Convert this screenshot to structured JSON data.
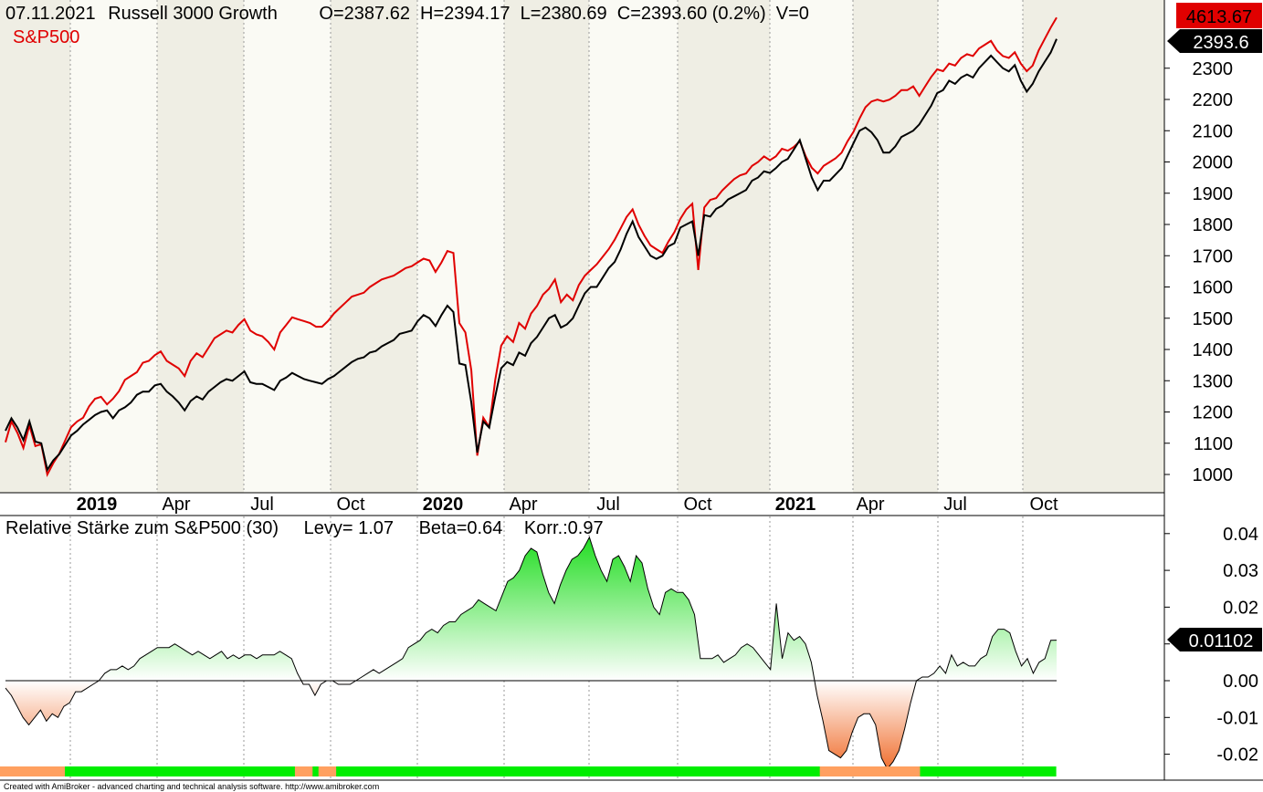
{
  "header": {
    "date": "07.11.2021",
    "symbol": "Russell 3000 Growth",
    "ohlc": "O=2387.62  H=2394.17  L=2380.69  C=2393.60 (0.2%)  V=0",
    "overlay_label": "S&P500"
  },
  "indicator_header": {
    "title": "Relative Stärke zum S&P500 (30)",
    "levy": "Levy= 1.07",
    "beta": "Beta=0.64",
    "korr": "Korr.:0.97"
  },
  "badges": {
    "sp500_last": "4613.67",
    "r3g_last": "2393.6",
    "rs_last": "0.01102"
  },
  "credit": "Created with AmiBroker - advanced charting and technical analysis software. http://www.amibroker.com",
  "colors": {
    "r3g_line": "#000000",
    "sp500_line": "#e00000",
    "rs_positive_fill": "#22dd22",
    "rs_negative_fill": "#f07030",
    "band_green": "#00ee00",
    "band_orange": "#ffa060",
    "background_light": "#fafaf4",
    "background_dark": "#efeee4"
  },
  "chart_data": [
    {
      "type": "line",
      "title": "07.11.2021 Russell 3000 Growth",
      "xlabel": "",
      "ylabel": "",
      "x_ticks": [
        "2019",
        "Apr",
        "Jul",
        "Oct",
        "2020",
        "Apr",
        "Jul",
        "Oct",
        "2021",
        "Apr",
        "Jul",
        "Oct"
      ],
      "y_ticks": [
        1000,
        1100,
        1200,
        1300,
        1400,
        1500,
        1600,
        1700,
        1800,
        1900,
        2000,
        2100,
        2200,
        2300
      ],
      "ylim": [
        1000,
        2300
      ],
      "grid": true,
      "series": [
        {
          "name": "Russell 3000 Growth",
          "values": [
            1140,
            1180,
            1150,
            1110,
            1170,
            1105,
            1100,
            1015,
            1045,
            1065,
            1095,
            1125,
            1140,
            1160,
            1175,
            1190,
            1200,
            1205,
            1180,
            1205,
            1215,
            1230,
            1255,
            1265,
            1265,
            1285,
            1290,
            1265,
            1250,
            1230,
            1205,
            1235,
            1250,
            1240,
            1265,
            1280,
            1295,
            1305,
            1300,
            1315,
            1330,
            1295,
            1290,
            1290,
            1280,
            1270,
            1300,
            1310,
            1325,
            1315,
            1305,
            1300,
            1295,
            1290,
            1305,
            1315,
            1330,
            1345,
            1360,
            1370,
            1375,
            1390,
            1395,
            1410,
            1420,
            1430,
            1450,
            1455,
            1460,
            1490,
            1510,
            1500,
            1475,
            1510,
            1540,
            1520,
            1355,
            1350,
            1230,
            1070,
            1170,
            1150,
            1250,
            1340,
            1360,
            1350,
            1390,
            1380,
            1420,
            1440,
            1470,
            1500,
            1510,
            1470,
            1480,
            1500,
            1540,
            1580,
            1600,
            1600,
            1630,
            1660,
            1680,
            1720,
            1770,
            1810,
            1760,
            1730,
            1700,
            1690,
            1700,
            1730,
            1740,
            1790,
            1800,
            1810,
            1700,
            1830,
            1825,
            1850,
            1860,
            1880,
            1890,
            1900,
            1910,
            1940,
            1950,
            1970,
            1965,
            1980,
            2000,
            2010,
            2040,
            2070,
            2010,
            1950,
            1910,
            1940,
            1940,
            1960,
            1980,
            2020,
            2060,
            2100,
            2110,
            2095,
            2070,
            2030,
            2030,
            2050,
            2080,
            2090,
            2100,
            2120,
            2150,
            2180,
            2220,
            2230,
            2260,
            2250,
            2270,
            2280,
            2270,
            2300,
            2320,
            2340,
            2320,
            2300,
            2290,
            2310,
            2260,
            2225,
            2250,
            2290,
            2320,
            2350,
            2393.6
          ]
        },
        {
          "name": "S&P500",
          "values": [
            2370,
            2480,
            2420,
            2340,
            2460,
            2350,
            2360,
            2200,
            2260,
            2310,
            2380,
            2450,
            2480,
            2500,
            2560,
            2600,
            2610,
            2570,
            2600,
            2640,
            2700,
            2720,
            2740,
            2790,
            2800,
            2830,
            2850,
            2800,
            2780,
            2760,
            2720,
            2800,
            2840,
            2820,
            2870,
            2920,
            2940,
            2960,
            2950,
            2990,
            3020,
            2960,
            2940,
            2930,
            2900,
            2860,
            2950,
            2990,
            3030,
            3020,
            3010,
            3000,
            2980,
            2980,
            3010,
            3050,
            3080,
            3110,
            3140,
            3150,
            3160,
            3190,
            3210,
            3230,
            3240,
            3250,
            3270,
            3290,
            3300,
            3320,
            3340,
            3330,
            3270,
            3320,
            3380,
            3370,
            3000,
            2950,
            2750,
            2300,
            2500,
            2450,
            2700,
            2880,
            2930,
            2900,
            3000,
            2970,
            3050,
            3090,
            3150,
            3180,
            3230,
            3110,
            3150,
            3120,
            3200,
            3250,
            3280,
            3310,
            3350,
            3390,
            3440,
            3500,
            3560,
            3600,
            3520,
            3460,
            3410,
            3390,
            3370,
            3430,
            3480,
            3550,
            3600,
            3630,
            3280,
            3610,
            3650,
            3660,
            3700,
            3730,
            3760,
            3780,
            3790,
            3830,
            3850,
            3880,
            3860,
            3880,
            3920,
            3910,
            3930,
            3960,
            3880,
            3820,
            3790,
            3830,
            3850,
            3870,
            3900,
            3960,
            4010,
            4080,
            4140,
            4170,
            4180,
            4170,
            4180,
            4200,
            4230,
            4230,
            4250,
            4200,
            4250,
            4300,
            4340,
            4330,
            4370,
            4360,
            4400,
            4420,
            4410,
            4450,
            4470,
            4490,
            4440,
            4410,
            4400,
            4430,
            4370,
            4330,
            4360,
            4440,
            4500,
            4560,
            4613.67
          ]
        }
      ]
    },
    {
      "type": "area",
      "title": "Relative Stärke zum S&P500 (30)",
      "xlabel": "",
      "ylabel": "",
      "y_ticks": [
        0.04,
        0.03,
        0.02,
        0.01,
        0.0,
        -0.01,
        -0.02
      ],
      "ylim": [
        -0.026,
        0.04
      ],
      "grid": true,
      "series": [
        {
          "name": "Relative Stärke zum S&P500 (30)",
          "values": [
            -0.002,
            -0.004,
            -0.007,
            -0.01,
            -0.012,
            -0.01,
            -0.008,
            -0.011,
            -0.009,
            -0.01,
            -0.007,
            -0.006,
            -0.003,
            -0.003,
            -0.002,
            -0.001,
            0.0,
            0.002,
            0.003,
            0.003,
            0.004,
            0.003,
            0.004,
            0.006,
            0.007,
            0.008,
            0.009,
            0.009,
            0.009,
            0.01,
            0.009,
            0.008,
            0.007,
            0.008,
            0.007,
            0.006,
            0.007,
            0.008,
            0.006,
            0.007,
            0.006,
            0.007,
            0.007,
            0.006,
            0.007,
            0.007,
            0.007,
            0.008,
            0.007,
            0.006,
            0.002,
            -0.001,
            -0.001,
            -0.004,
            -0.001,
            0.0,
            0.0,
            -0.001,
            -0.001,
            -0.001,
            0.0,
            0.001,
            0.002,
            0.003,
            0.002,
            0.003,
            0.004,
            0.005,
            0.006,
            0.009,
            0.01,
            0.011,
            0.013,
            0.014,
            0.013,
            0.015,
            0.016,
            0.016,
            0.018,
            0.019,
            0.02,
            0.022,
            0.021,
            0.02,
            0.019,
            0.023,
            0.027,
            0.028,
            0.03,
            0.034,
            0.036,
            0.035,
            0.029,
            0.024,
            0.021,
            0.026,
            0.03,
            0.033,
            0.034,
            0.036,
            0.039,
            0.034,
            0.03,
            0.027,
            0.033,
            0.034,
            0.031,
            0.027,
            0.034,
            0.032,
            0.025,
            0.02,
            0.018,
            0.024,
            0.025,
            0.024,
            0.024,
            0.022,
            0.018,
            0.006,
            0.006,
            0.006,
            0.007,
            0.005,
            0.006,
            0.007,
            0.009,
            0.01,
            0.009,
            0.007,
            0.005,
            0.003,
            0.021,
            0.006,
            0.013,
            0.011,
            0.012,
            0.01,
            0.005,
            -0.004,
            -0.011,
            -0.019,
            -0.02,
            -0.021,
            -0.019,
            -0.014,
            -0.01,
            -0.009,
            -0.009,
            -0.012,
            -0.021,
            -0.024,
            -0.022,
            -0.019,
            -0.013,
            -0.006,
            0.0,
            0.001,
            0.001,
            0.002,
            0.004,
            0.002,
            0.007,
            0.004,
            0.005,
            0.004,
            0.004,
            0.006,
            0.007,
            0.012,
            0.014,
            0.014,
            0.013,
            0.008,
            0.004,
            0.006,
            0.002,
            0.005,
            0.006,
            0.011,
            0.01102
          ]
        }
      ],
      "status_band": [
        "orange",
        "orange",
        "orange",
        "orange",
        "orange",
        "orange",
        "orange",
        "orange",
        "orange",
        "orange",
        "orange",
        "green",
        "green",
        "green",
        "green",
        "green",
        "green",
        "green",
        "green",
        "green",
        "green",
        "green",
        "green",
        "green",
        "green",
        "green",
        "green",
        "green",
        "green",
        "green",
        "green",
        "green",
        "green",
        "green",
        "green",
        "green",
        "green",
        "green",
        "green",
        "green",
        "green",
        "green",
        "green",
        "green",
        "green",
        "green",
        "green",
        "green",
        "green",
        "green",
        "orange",
        "orange",
        "orange",
        "green",
        "orange",
        "orange",
        "orange",
        "green",
        "green",
        "green",
        "green",
        "green",
        "green",
        "green",
        "green",
        "green",
        "green",
        "green",
        "green",
        "green",
        "green",
        "green",
        "green",
        "green",
        "green",
        "green",
        "green",
        "green",
        "green",
        "green",
        "green",
        "green",
        "green",
        "green",
        "green",
        "green",
        "green",
        "green",
        "green",
        "green",
        "green",
        "green",
        "green",
        "green",
        "green",
        "green",
        "green",
        "green",
        "green",
        "green",
        "green",
        "green",
        "green",
        "green",
        "green",
        "green",
        "green",
        "green",
        "green",
        "green",
        "green",
        "green",
        "green",
        "green",
        "green",
        "green",
        "green",
        "green",
        "green",
        "green",
        "green",
        "green",
        "green",
        "green",
        "green",
        "green",
        "green",
        "green",
        "green",
        "green",
        "green",
        "green",
        "green",
        "green",
        "green",
        "green",
        "green",
        "green",
        "green",
        "orange",
        "orange",
        "orange",
        "orange",
        "orange",
        "orange",
        "orange",
        "orange",
        "orange",
        "orange",
        "orange",
        "orange",
        "orange",
        "orange",
        "orange",
        "orange",
        "orange",
        "green",
        "green",
        "green",
        "green",
        "green",
        "green",
        "green",
        "green",
        "green",
        "green",
        "green",
        "green",
        "green",
        "green",
        "green",
        "green",
        "green",
        "green",
        "green",
        "green",
        "green",
        "green",
        "green"
      ]
    }
  ]
}
